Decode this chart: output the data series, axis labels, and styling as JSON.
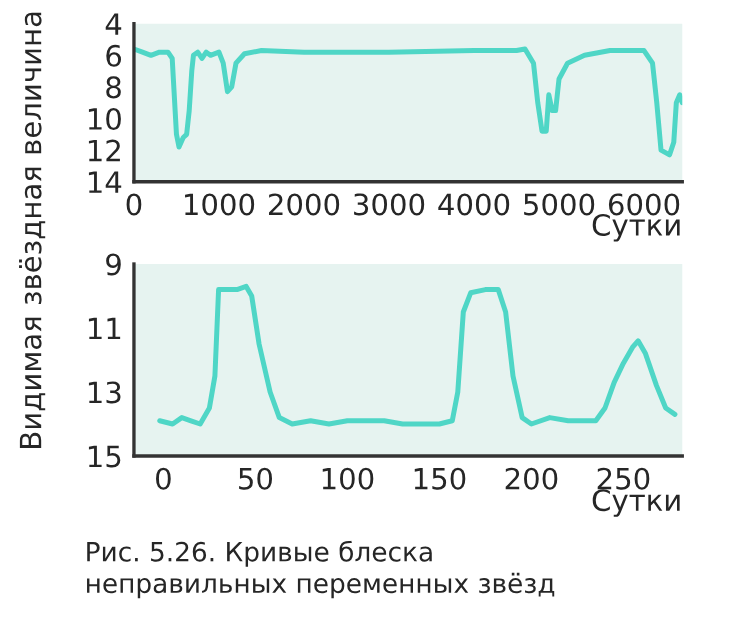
{
  "chart_data": [
    {
      "type": "line",
      "ylabel": "Видимая звёздная величина",
      "xlabel": "Сутки",
      "xlim": [
        0,
        6450
      ],
      "xticks": [
        0,
        1000,
        2000,
        3000,
        4000,
        5000,
        6000
      ],
      "ylim": [
        14,
        4
      ],
      "yticks": [
        4,
        6,
        8,
        10,
        12,
        14
      ],
      "grid": false,
      "legend": false,
      "series": [
        {
          "color": "#4fd6c6",
          "x": [
            0,
            100,
            200,
            300,
            400,
            450,
            500,
            530,
            580,
            620,
            650,
            680,
            700,
            750,
            800,
            850,
            900,
            1000,
            1050,
            1100,
            1150,
            1200,
            1300,
            1500,
            2000,
            3000,
            4000,
            4500,
            4600,
            4700,
            4750,
            4800,
            4850,
            4880,
            4920,
            4960,
            5000,
            5100,
            5300,
            5600,
            6000,
            6100,
            6150,
            6200,
            6300,
            6350,
            6380,
            6420,
            6450
          ],
          "values": [
            5.6,
            5.8,
            6.0,
            5.8,
            5.8,
            6.2,
            11.0,
            11.8,
            11.2,
            11.0,
            9.5,
            7.0,
            6.0,
            5.8,
            6.2,
            5.8,
            6.0,
            5.8,
            6.5,
            8.3,
            8.0,
            6.5,
            5.9,
            5.7,
            5.8,
            5.8,
            5.7,
            5.7,
            5.6,
            6.5,
            9.0,
            10.8,
            10.8,
            8.5,
            9.5,
            9.5,
            7.5,
            6.5,
            6.0,
            5.7,
            5.7,
            6.5,
            9.0,
            12.0,
            12.3,
            11.5,
            9.0,
            8.5,
            9.0
          ]
        }
      ]
    },
    {
      "type": "line",
      "xlabel": "Сутки",
      "xlim": [
        -16,
        282
      ],
      "xticks": [
        0,
        50,
        100,
        150,
        200,
        250
      ],
      "ylim": [
        15,
        9
      ],
      "yticks": [
        9,
        11,
        13,
        15
      ],
      "grid": false,
      "legend": false,
      "annotations": [
        "Рис. 5.26. Кривые блеска\nнеправильных переменных звёзд"
      ],
      "series": [
        {
          "color": "#4fd6c6",
          "x": [
            -2,
            5,
            10,
            15,
            20,
            25,
            28,
            30,
            35,
            40,
            45,
            48,
            52,
            58,
            63,
            70,
            80,
            90,
            100,
            110,
            120,
            130,
            140,
            150,
            157,
            160,
            163,
            167,
            175,
            182,
            186,
            190,
            195,
            200,
            210,
            220,
            230,
            235,
            240,
            245,
            250,
            255,
            258,
            262,
            268,
            273,
            278
          ],
          "values": [
            13.9,
            14.0,
            13.8,
            13.9,
            14.0,
            13.5,
            12.5,
            9.8,
            9.8,
            9.8,
            9.7,
            10.0,
            11.5,
            13.0,
            13.8,
            14.0,
            13.9,
            14.0,
            13.9,
            13.9,
            13.9,
            14.0,
            14.0,
            14.0,
            13.9,
            13.0,
            10.5,
            9.9,
            9.8,
            9.8,
            10.5,
            12.5,
            13.8,
            14.0,
            13.8,
            13.9,
            13.9,
            13.9,
            13.5,
            12.7,
            12.1,
            11.6,
            11.4,
            11.8,
            12.8,
            13.5,
            13.7
          ]
        }
      ]
    }
  ]
}
